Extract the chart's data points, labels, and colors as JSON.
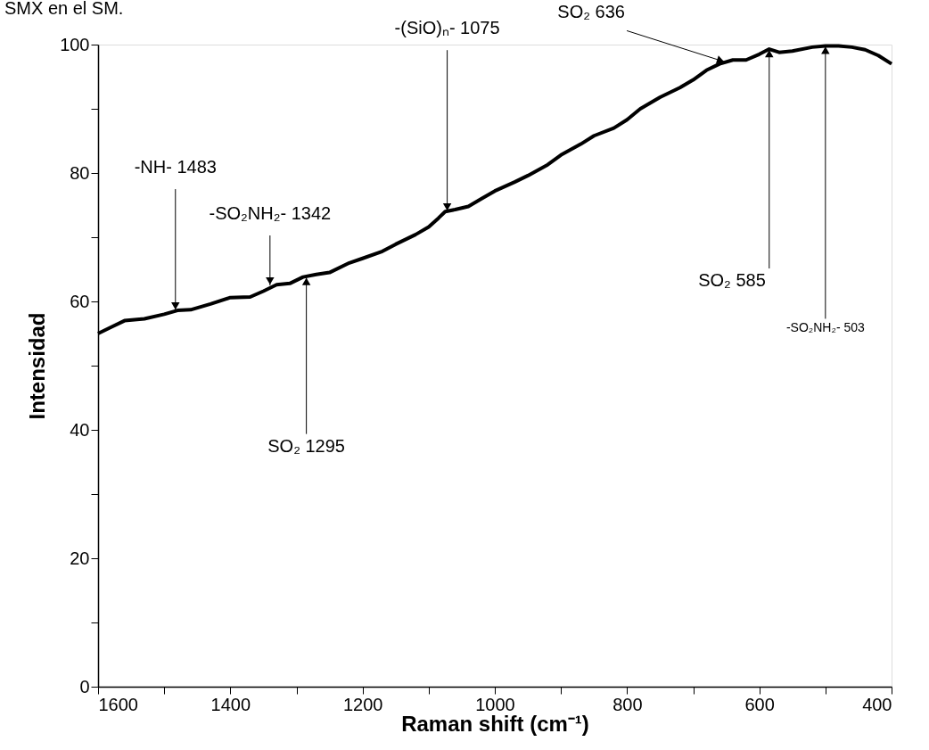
{
  "chart_data": {
    "type": "line",
    "title": "SMX en el SM.",
    "xlabel": "Raman shift (cm⁻¹)",
    "ylabel": "Intensidad",
    "x": [
      1600,
      1580,
      1560,
      1530,
      1500,
      1480,
      1460,
      1430,
      1400,
      1370,
      1350,
      1330,
      1310,
      1290,
      1270,
      1250,
      1220,
      1200,
      1170,
      1150,
      1120,
      1100,
      1085,
      1075,
      1060,
      1040,
      1020,
      1000,
      970,
      950,
      920,
      900,
      870,
      850,
      820,
      800,
      780,
      750,
      720,
      700,
      680,
      660,
      640,
      620,
      600,
      585,
      570,
      550,
      520,
      500,
      480,
      460,
      440,
      420,
      400
    ],
    "series": [
      {
        "color": "#000000",
        "values": [
          55,
          56,
          57,
          57.3,
          58,
          58.6,
          58.7,
          59.6,
          60.6,
          60.7,
          61.6,
          62.6,
          62.8,
          63.8,
          64.2,
          64.5,
          66,
          66.7,
          67.8,
          68.9,
          70.4,
          71.6,
          73,
          74,
          74.3,
          74.8,
          76,
          77.2,
          78.6,
          79.6,
          81.3,
          82.8,
          84.5,
          85.8,
          87,
          88.3,
          90,
          91.8,
          93.3,
          94.5,
          96,
          97,
          97.6,
          97.6,
          98.5,
          99.3,
          98.8,
          99,
          99.6,
          99.8,
          99.8,
          99.6,
          99.2,
          98.3,
          97
        ]
      }
    ],
    "xlim": [
      1600,
      400
    ],
    "ylim": [
      0,
      100
    ],
    "xticks": [
      1600,
      {
        "value": 1500,
        "label": null
      },
      1400,
      {
        "value": 1300,
        "label": null
      },
      1200,
      {
        "value": 1100,
        "label": null
      },
      1000,
      {
        "value": 900,
        "label": null
      },
      800,
      {
        "value": 700,
        "label": null
      },
      600,
      {
        "value": 500,
        "label": null
      },
      400
    ],
    "yticks": [
      0,
      {
        "value": 10,
        "label": null
      },
      20,
      {
        "value": 30,
        "label": null
      },
      40,
      {
        "value": 50,
        "label": null
      },
      60,
      {
        "value": 70,
        "label": null
      },
      80,
      {
        "value": 90,
        "label": null
      },
      100
    ],
    "grid": false,
    "marker": "none",
    "line_style": "solid",
    "annotations": [
      {
        "text": "-NH- 1483",
        "x": 1483,
        "y": 58.6
      },
      {
        "text": "-SO₂NH₂- 1342",
        "x": 1340,
        "y": 62.5
      },
      {
        "text": "SO₂ 1295",
        "x": 1285,
        "y": 63.8
      },
      {
        "text": "-(SiO)ₙ- 1075",
        "x": 1072,
        "y": 74
      },
      {
        "text": "SO₂ 636",
        "x": 652,
        "y": 97.3
      },
      {
        "text": "SO₂ 585",
        "x": 585,
        "y": 99.3
      },
      {
        "text": "-SO₂NH₂- 503",
        "x": 500,
        "y": 99.8
      }
    ]
  }
}
